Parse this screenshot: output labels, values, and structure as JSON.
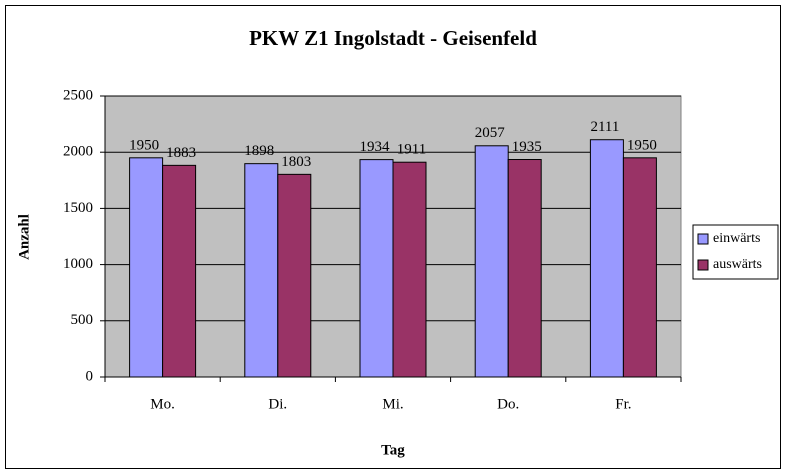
{
  "chart_data": {
    "type": "bar",
    "title": "PKW Z1 Ingolstadt - Geisenfeld",
    "x_label": "Tag",
    "y_label": "Anzahl",
    "categories": [
      "Mo.",
      "Di.",
      "Mi.",
      "Do.",
      "Fr."
    ],
    "series": [
      {
        "name": "einwärts",
        "color": "#9999ff",
        "values": [
          1950,
          1898,
          1934,
          2057,
          2111
        ]
      },
      {
        "name": "auswärts",
        "color": "#993366",
        "values": [
          1883,
          1803,
          1911,
          1935,
          1950
        ]
      }
    ],
    "ylim": [
      0,
      2500
    ],
    "yticks": [
      0,
      500,
      1000,
      1500,
      2000,
      2500
    ],
    "grid": true,
    "legend": "right",
    "plot_background": "#c0c0c0"
  }
}
